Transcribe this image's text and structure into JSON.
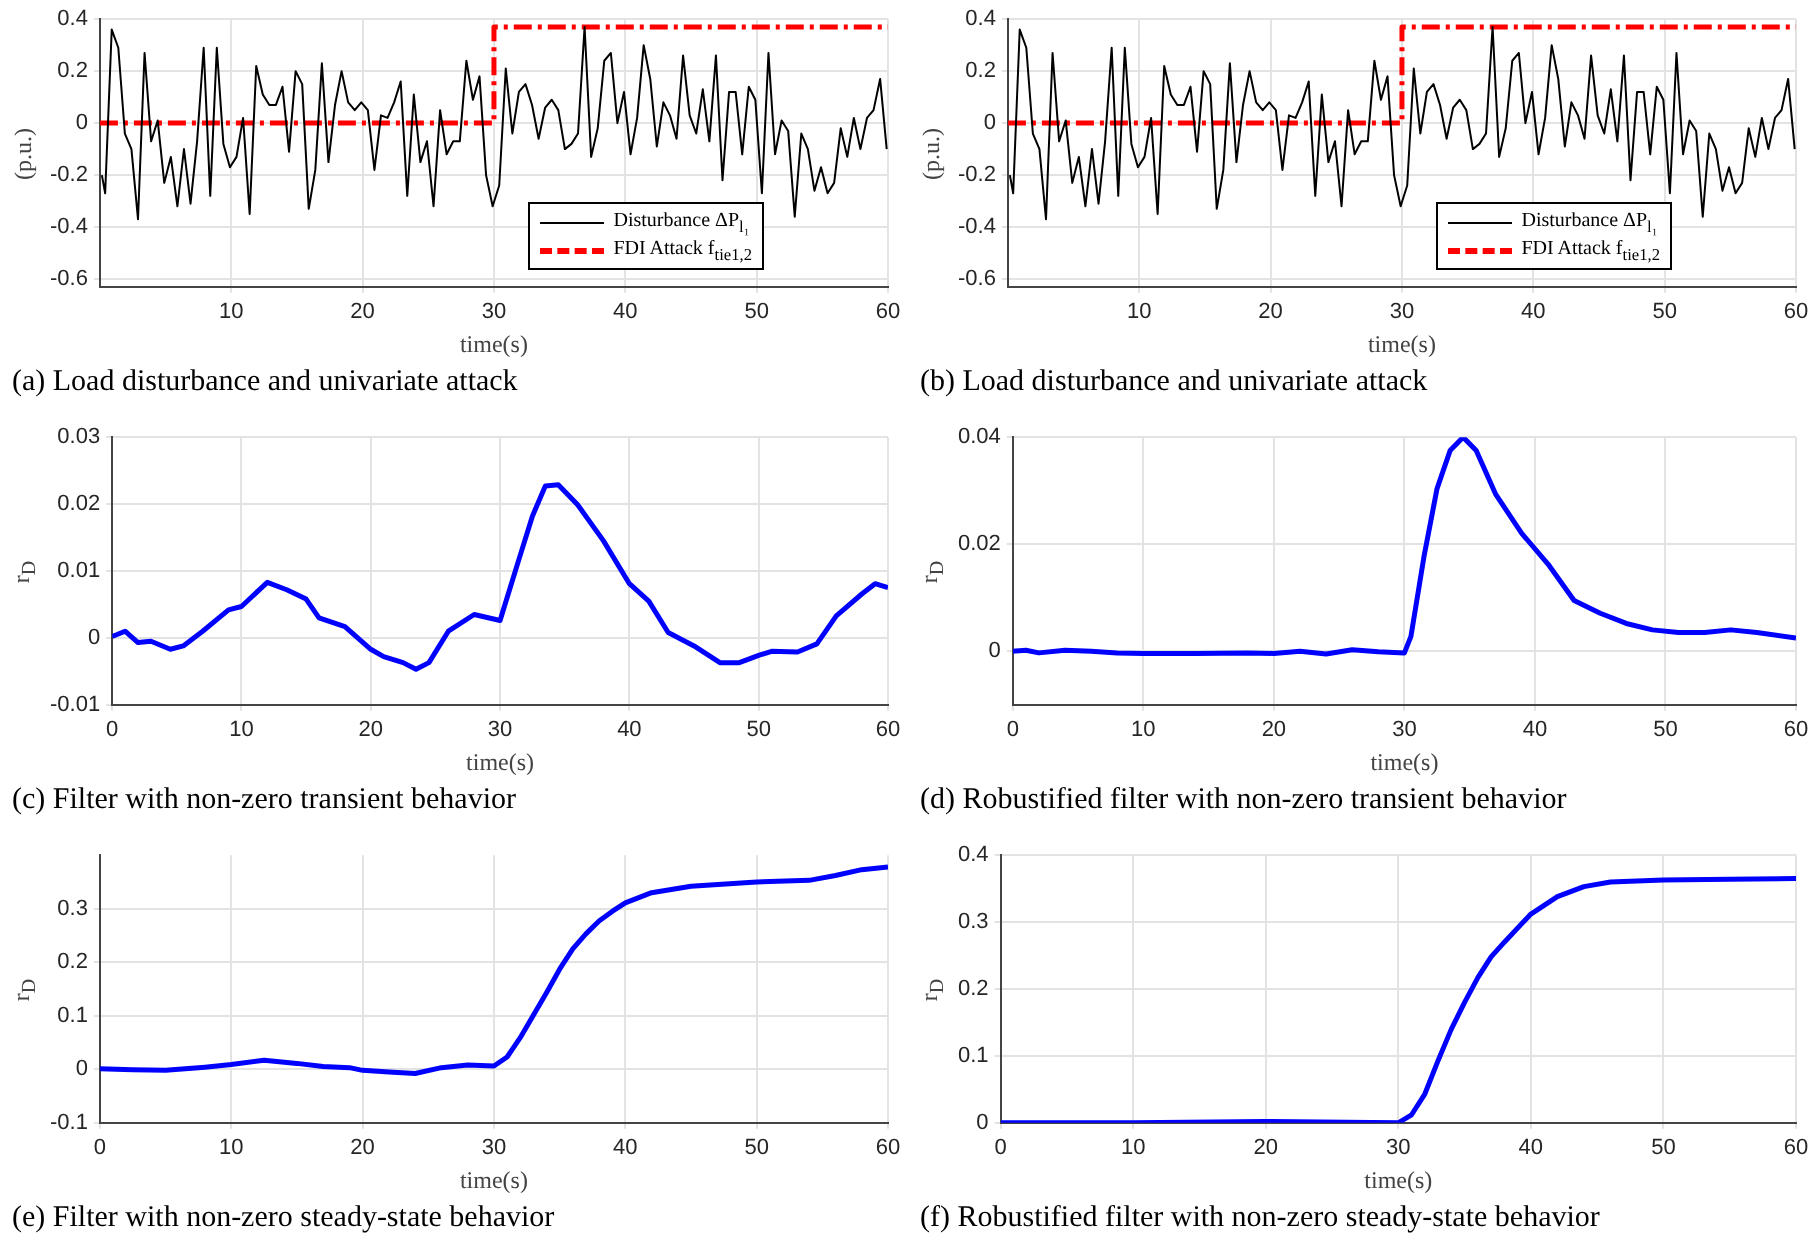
{
  "chart_data": [
    {
      "type": "line",
      "title": "(a) Load disturbance and univariate attack",
      "xlabel": "time(s)",
      "ylabel": "(p.u.)",
      "xlim": [
        0,
        60
      ],
      "xticks": [
        10,
        20,
        30,
        40,
        50,
        60
      ],
      "ylim": [
        -0.63,
        0.4
      ],
      "yticks": [
        -0.6,
        -0.4,
        -0.2,
        0,
        0.2,
        0.4
      ],
      "grid": true,
      "legend": "bottom right",
      "marker": "none",
      "series": [
        {
          "name": "Disturbance ΔP$_{l₁}$",
          "color": "#000000",
          "line_style": "solid",
          "x": [
            0.15,
            0.4,
            0.9,
            1.4,
            1.9,
            2.4,
            2.9,
            3.4,
            3.9,
            4.4,
            4.9,
            5.4,
            5.9,
            6.4,
            6.9,
            7.4,
            7.9,
            8.4,
            8.9,
            9.4,
            9.9,
            10.4,
            10.9,
            11.4,
            11.9,
            12.4,
            12.9,
            13.4,
            13.9,
            14.4,
            14.9,
            15.4,
            15.9,
            16.4,
            16.9,
            17.4,
            17.9,
            18.4,
            18.9,
            19.4,
            19.9,
            20.4,
            20.9,
            21.4,
            21.9,
            22.4,
            22.9,
            23.4,
            23.9,
            24.4,
            24.9,
            25.4,
            25.9,
            26.4,
            26.9,
            27.4,
            27.9,
            28.4,
            28.9,
            29.4,
            29.9,
            30.4,
            30.9,
            31.4,
            31.9,
            32.4,
            32.9,
            33.4,
            33.9,
            34.4,
            34.9,
            35.4,
            35.9,
            36.4,
            36.9,
            37.4,
            37.9,
            38.4,
            38.9,
            39.4,
            39.9,
            40.4,
            40.9,
            41.4,
            41.9,
            42.4,
            42.9,
            43.4,
            43.9,
            44.4,
            44.9,
            45.4,
            45.9,
            46.4,
            46.9,
            47.4,
            47.9,
            48.4,
            48.9,
            49.4,
            49.9,
            50.4,
            50.9,
            51.4,
            51.9,
            52.4,
            52.9,
            53.4,
            53.9,
            54.4,
            54.9,
            55.4,
            55.9,
            56.4,
            56.9,
            57.4,
            57.9,
            58.4,
            58.9,
            59.4,
            59.9
          ],
          "values": [
            -0.2,
            -0.27,
            0.36,
            0.29,
            -0.04,
            -0.1,
            -0.37,
            0.27,
            -0.07,
            0.01,
            -0.23,
            -0.13,
            -0.32,
            -0.1,
            -0.31,
            -0.07,
            0.29,
            -0.28,
            0.29,
            -0.08,
            -0.17,
            -0.13,
            0.02,
            -0.35,
            0.22,
            0.11,
            0.07,
            0.07,
            0.14,
            -0.11,
            0.2,
            0.15,
            -0.33,
            -0.18,
            0.23,
            -0.15,
            0.07,
            0.2,
            0.08,
            0.05,
            0.08,
            0.05,
            -0.18,
            0.03,
            0.02,
            0.08,
            0.16,
            -0.28,
            0.11,
            -0.15,
            -0.07,
            -0.32,
            0.05,
            -0.12,
            -0.07,
            -0.07,
            0.24,
            0.09,
            0.18,
            -0.2,
            -0.32,
            -0.24,
            0.21,
            -0.04,
            0.12,
            0.15,
            0.07,
            -0.06,
            0.06,
            0.09,
            0.05,
            -0.1,
            -0.08,
            -0.04,
            0.37,
            -0.13,
            -0.02,
            0.24,
            0.27,
            0,
            0.12,
            -0.12,
            0.02,
            0.3,
            0.17,
            -0.09,
            0.08,
            0.03,
            -0.06,
            0.26,
            0.03,
            -0.04,
            0.13,
            -0.07,
            0.26,
            -0.22,
            0.12,
            0.12,
            -0.12,
            0.14,
            0.09,
            -0.27,
            0.27,
            -0.12,
            0.01,
            -0.03,
            -0.36,
            -0.04,
            -0.1,
            -0.26,
            -0.17,
            -0.27,
            -0.23,
            -0.02,
            -0.13,
            0.02,
            -0.1,
            0.02,
            0.05,
            0.17,
            -0.1
          ]
        },
        {
          "name": "FDI Attack f$_{tie1,2}$",
          "color": "#ff0000",
          "line_style": "dashed",
          "x": [
            0,
            30,
            30,
            60
          ],
          "values": [
            0,
            0,
            0.37,
            0.37
          ]
        }
      ]
    },
    {
      "type": "line",
      "title": "(b) Load disturbance and univariate attack",
      "xlabel": "time(s)",
      "ylabel": "(p.u.)",
      "xlim": [
        0,
        60
      ],
      "xticks": [
        10,
        20,
        30,
        40,
        50,
        60
      ],
      "ylim": [
        -0.63,
        0.4
      ],
      "yticks": [
        -0.6,
        -0.4,
        -0.2,
        0,
        0.2,
        0.4
      ],
      "grid": true,
      "legend": "bottom right",
      "marker": "none",
      "series": [
        {
          "name": "Disturbance ΔP$_{l₁}$",
          "color": "#000000",
          "line_style": "solid",
          "x": [
            0.15,
            0.4,
            0.9,
            1.4,
            1.9,
            2.4,
            2.9,
            3.4,
            3.9,
            4.4,
            4.9,
            5.4,
            5.9,
            6.4,
            6.9,
            7.4,
            7.9,
            8.4,
            8.9,
            9.4,
            9.9,
            10.4,
            10.9,
            11.4,
            11.9,
            12.4,
            12.9,
            13.4,
            13.9,
            14.4,
            14.9,
            15.4,
            15.9,
            16.4,
            16.9,
            17.4,
            17.9,
            18.4,
            18.9,
            19.4,
            19.9,
            20.4,
            20.9,
            21.4,
            21.9,
            22.4,
            22.9,
            23.4,
            23.9,
            24.4,
            24.9,
            25.4,
            25.9,
            26.4,
            26.9,
            27.4,
            27.9,
            28.4,
            28.9,
            29.4,
            29.9,
            30.4,
            30.9,
            31.4,
            31.9,
            32.4,
            32.9,
            33.4,
            33.9,
            34.4,
            34.9,
            35.4,
            35.9,
            36.4,
            36.9,
            37.4,
            37.9,
            38.4,
            38.9,
            39.4,
            39.9,
            40.4,
            40.9,
            41.4,
            41.9,
            42.4,
            42.9,
            43.4,
            43.9,
            44.4,
            44.9,
            45.4,
            45.9,
            46.4,
            46.9,
            47.4,
            47.9,
            48.4,
            48.9,
            49.4,
            49.9,
            50.4,
            50.9,
            51.4,
            51.9,
            52.4,
            52.9,
            53.4,
            53.9,
            54.4,
            54.9,
            55.4,
            55.9,
            56.4,
            56.9,
            57.4,
            57.9,
            58.4,
            58.9,
            59.4,
            59.9
          ],
          "values": [
            -0.2,
            -0.27,
            0.36,
            0.29,
            -0.04,
            -0.1,
            -0.37,
            0.27,
            -0.07,
            0.01,
            -0.23,
            -0.13,
            -0.32,
            -0.1,
            -0.31,
            -0.07,
            0.29,
            -0.28,
            0.29,
            -0.08,
            -0.17,
            -0.13,
            0.02,
            -0.35,
            0.22,
            0.11,
            0.07,
            0.07,
            0.14,
            -0.11,
            0.2,
            0.15,
            -0.33,
            -0.18,
            0.23,
            -0.15,
            0.07,
            0.2,
            0.08,
            0.05,
            0.08,
            0.05,
            -0.18,
            0.03,
            0.02,
            0.08,
            0.16,
            -0.28,
            0.11,
            -0.15,
            -0.07,
            -0.32,
            0.05,
            -0.12,
            -0.07,
            -0.07,
            0.24,
            0.09,
            0.18,
            -0.2,
            -0.32,
            -0.24,
            0.21,
            -0.04,
            0.12,
            0.15,
            0.07,
            -0.06,
            0.06,
            0.09,
            0.05,
            -0.1,
            -0.08,
            -0.04,
            0.37,
            -0.13,
            -0.02,
            0.24,
            0.27,
            0,
            0.12,
            -0.12,
            0.02,
            0.3,
            0.17,
            -0.09,
            0.08,
            0.03,
            -0.06,
            0.26,
            0.03,
            -0.04,
            0.13,
            -0.07,
            0.26,
            -0.22,
            0.12,
            0.12,
            -0.12,
            0.14,
            0.09,
            -0.27,
            0.27,
            -0.12,
            0.01,
            -0.03,
            -0.36,
            -0.04,
            -0.1,
            -0.26,
            -0.17,
            -0.27,
            -0.23,
            -0.02,
            -0.13,
            0.02,
            -0.1,
            0.02,
            0.05,
            0.17,
            -0.1
          ]
        },
        {
          "name": "FDI Attack f$_{tie1,2}$",
          "color": "#ff0000",
          "line_style": "dashed",
          "x": [
            0,
            30,
            30,
            60
          ],
          "values": [
            0,
            0,
            0.37,
            0.37
          ]
        }
      ]
    },
    {
      "type": "line",
      "title": "(c) Filter with non-zero transient behavior",
      "xlabel": "time(s)",
      "ylabel": "r$_{D}$",
      "xlim": [
        0,
        60
      ],
      "xticks": [
        0,
        10,
        20,
        30,
        40,
        50,
        60
      ],
      "ylim": [
        -0.01,
        0.03
      ],
      "yticks": [
        -0.01,
        0,
        0.01,
        0.02,
        0.03
      ],
      "grid": true,
      "marker": "none",
      "series": [
        {
          "color": "#0000ff",
          "line_style": "solid",
          "x": [
            0,
            1,
            2,
            3,
            4.5,
            5.5,
            7,
            9,
            10,
            12,
            13.5,
            15,
            16,
            18,
            20,
            21,
            22.5,
            23.5,
            24.5,
            26,
            28,
            30,
            31.5,
            32.5,
            33.5,
            34.5,
            36,
            38,
            40,
            41.5,
            43,
            45,
            47,
            48.5,
            50,
            51,
            53,
            54.5,
            56,
            58,
            59,
            60
          ],
          "values": [
            0.0002,
            0.001,
            -0.0007,
            -0.0005,
            -0.0017,
            -0.0012,
            0.001,
            0.0042,
            0.0047,
            0.0083,
            0.0072,
            0.0058,
            0.003,
            0.0017,
            -0.0017,
            -0.0028,
            -0.0037,
            -0.0047,
            -0.0037,
            0.001,
            0.0035,
            0.0026,
            0.012,
            0.0182,
            0.0227,
            0.0229,
            0.0199,
            0.0145,
            0.0081,
            0.0055,
            0.0008,
            -0.0012,
            -0.0037,
            -0.0037,
            -0.0026,
            -0.002,
            -0.0021,
            -0.0009,
            0.0033,
            0.0066,
            0.0081,
            0.0075
          ]
        }
      ]
    },
    {
      "type": "line",
      "title": "(d) Robustified filter with non-zero transient behavior",
      "xlabel": "time(s)",
      "ylabel": "r$_{D}$",
      "xlim": [
        0,
        60
      ],
      "xticks": [
        0,
        10,
        20,
        30,
        40,
        50,
        60
      ],
      "ylim": [
        -0.01,
        0.04
      ],
      "yticks": [
        0,
        0.02,
        0.04
      ],
      "grid": true,
      "marker": "none",
      "series": [
        {
          "color": "#0000ff",
          "line_style": "solid",
          "x": [
            0,
            1,
            2,
            4,
            6,
            8,
            10,
            14,
            18,
            20,
            22,
            24,
            26,
            28,
            30,
            30.5,
            31.5,
            32.5,
            33.5,
            34.5,
            35.5,
            37,
            39,
            41,
            43,
            45,
            47,
            49,
            51,
            53,
            55,
            57,
            60
          ],
          "values": [
            0,
            0.0002,
            -0.0003,
            0.0002,
            0,
            -0.0003,
            -0.0004,
            -0.0004,
            -0.0003,
            -0.0004,
            0,
            -0.0005,
            0.0003,
            -0.0001,
            -0.0003,
            0.0028,
            0.0177,
            0.0304,
            0.0375,
            0.04,
            0.0375,
            0.0293,
            0.022,
            0.0163,
            0.0095,
            0.0071,
            0.0052,
            0.004,
            0.0035,
            0.0035,
            0.004,
            0.0035,
            0.0025
          ]
        }
      ]
    },
    {
      "type": "line",
      "title": "(e) Filter with non-zero steady-state behavior",
      "xlabel": "time(s)",
      "ylabel": "r$_{D}$",
      "xlim": [
        0,
        60
      ],
      "xticks": [
        0,
        10,
        20,
        30,
        40,
        50,
        60
      ],
      "ylim": [
        -0.1,
        0.4
      ],
      "yticks": [
        -0.1,
        0,
        0.1,
        0.2,
        0.3
      ],
      "grid": true,
      "marker": "none",
      "series": [
        {
          "color": "#0000ff",
          "line_style": "solid",
          "x": [
            0,
            2.5,
            5,
            8,
            10,
            12.5,
            15,
            17,
            19,
            20,
            22,
            24,
            26,
            28,
            30,
            31,
            32,
            33,
            34,
            35,
            36,
            37,
            38,
            39,
            40,
            42,
            45,
            50,
            54,
            56,
            58,
            60
          ],
          "values": [
            0.001,
            -0.001,
            -0.002,
            0.004,
            0.009,
            0.017,
            0.011,
            0.005,
            0.003,
            -0.002,
            -0.005,
            -0.008,
            0.003,
            0.008,
            0.006,
            0.023,
            0.059,
            0.101,
            0.143,
            0.187,
            0.225,
            0.253,
            0.277,
            0.295,
            0.311,
            0.33,
            0.342,
            0.35,
            0.353,
            0.362,
            0.373,
            0.378
          ]
        }
      ]
    },
    {
      "type": "line",
      "title": "(f) Robustified filter with non-zero steady-state behavior",
      "xlabel": "time(s)",
      "ylabel": "r$_{D}$",
      "xlim": [
        0,
        60
      ],
      "xticks": [
        0,
        10,
        20,
        30,
        40,
        50,
        60
      ],
      "ylim": [
        0,
        0.4
      ],
      "yticks": [
        0,
        0.1,
        0.2,
        0.3,
        0.4
      ],
      "grid": true,
      "marker": "none",
      "series": [
        {
          "color": "#0000ff",
          "line_style": "solid",
          "x": [
            0,
            10,
            20,
            30,
            31,
            32,
            33,
            34,
            35,
            36,
            37,
            38,
            40,
            42,
            44,
            46,
            50,
            55,
            60
          ],
          "values": [
            0,
            0,
            0.002,
            0,
            0.012,
            0.043,
            0.093,
            0.14,
            0.18,
            0.217,
            0.248,
            0.27,
            0.312,
            0.338,
            0.353,
            0.36,
            0.363,
            0.364,
            0.365
          ]
        }
      ]
    }
  ]
}
